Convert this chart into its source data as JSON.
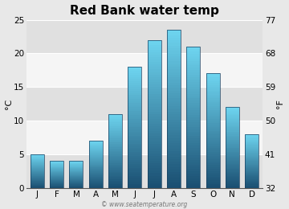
{
  "title": "Red Bank water temp",
  "months": [
    "J",
    "F",
    "M",
    "A",
    "M",
    "J",
    "J",
    "A",
    "S",
    "O",
    "N",
    "D"
  ],
  "values_c": [
    5,
    4,
    4,
    7,
    11,
    18,
    22,
    23.5,
    21,
    17,
    12,
    8
  ],
  "ylabel_left": "°C",
  "ylabel_right": "°F",
  "yticks_c": [
    0,
    5,
    10,
    15,
    20,
    25
  ],
  "yticks_f": [
    32,
    41,
    50,
    59,
    68,
    77
  ],
  "ylim_c": [
    0,
    25
  ],
  "bar_color_top": "#6dd4ef",
  "bar_color_bottom": "#1a4f72",
  "bar_outline": "#1a4060",
  "bg_color": "#e8e8e8",
  "band_light": "#f5f5f5",
  "band_dark": "#e0e0e0",
  "title_fontsize": 11,
  "axis_label_fontsize": 8,
  "tick_fontsize": 7.5,
  "watermark": "© www.seatemperature.org",
  "bar_width": 0.7,
  "num_gradient_steps": 60
}
